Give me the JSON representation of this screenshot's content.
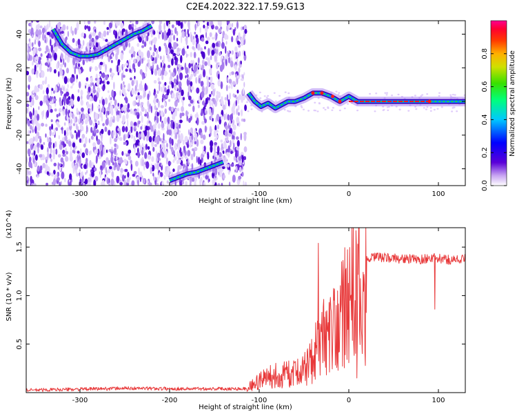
{
  "title": "C2E4.2022.322.17.59.G13",
  "colors": {
    "snr_line": "#e8393a",
    "ridge_dark": "#3a00b8",
    "ridge_green": "#1ddf3c",
    "ridge_red": "#ff1a1a"
  },
  "chart_data": [
    {
      "type": "heatmap",
      "xlabel": "Height of straight line (km)",
      "ylabel": "Frequency (Hz)",
      "xlim": [
        -360,
        130
      ],
      "ylim": [
        -50,
        48
      ],
      "x_ticks": [
        -300,
        -200,
        -100,
        0,
        100
      ],
      "x_tick_labels": [
        "-300",
        "-200",
        "-100",
        "0",
        "100"
      ],
      "y_ticks": [
        -40,
        -20,
        0,
        20,
        40
      ],
      "y_tick_labels": [
        "-40",
        "-20",
        "0",
        "20",
        "40"
      ],
      "colorbar": {
        "label": "Normalized spectral amplitude",
        "range": [
          0,
          1
        ],
        "ticks": [
          0.0,
          0.2,
          0.4,
          0.6,
          0.8
        ],
        "tick_labels": [
          "0.0",
          "0.2",
          "0.4",
          "0.6",
          "0.8"
        ],
        "colormap": "rainbow"
      },
      "ridges": [
        {
          "x": [
            -330,
            -320,
            -310,
            -300,
            -290,
            -280,
            -270,
            -260,
            -250,
            -240,
            -230,
            -220
          ],
          "y": [
            43,
            34,
            29,
            27,
            27,
            28,
            31,
            34,
            37,
            40,
            42,
            45
          ]
        },
        {
          "x": [
            -200,
            -190,
            -180,
            -170,
            -160,
            -150,
            -140
          ],
          "y": [
            -47,
            -45,
            -43,
            -42,
            -40,
            -38,
            -36
          ]
        },
        {
          "x": [
            -112,
            -105,
            -98,
            -90,
            -82,
            -75,
            -68,
            -60,
            -50,
            -40,
            -30,
            -20,
            -10,
            0,
            10,
            50,
            90,
            130
          ],
          "y": [
            5,
            0,
            -3,
            -1,
            -4,
            -2,
            0,
            0,
            2,
            5,
            5,
            3,
            0,
            3,
            0,
            0,
            0,
            0
          ]
        }
      ]
    },
    {
      "type": "line",
      "xlabel": "Height of straight line (km)",
      "ylabel": "SNR (10 * v/v)",
      "y_multiplier": "(x10^4)",
      "xlim": [
        -360,
        130
      ],
      "ylim": [
        0,
        17000
      ],
      "x_ticks": [
        -300,
        -200,
        -100,
        0,
        100
      ],
      "x_tick_labels": [
        "-300",
        "-200",
        "-100",
        "0",
        "100"
      ],
      "y_ticks": [
        5000,
        10000,
        15000
      ],
      "y_tick_labels": [
        "0.5",
        "1.0",
        "1.5"
      ],
      "series": [
        {
          "x": [
            -360,
            -300,
            -250,
            -200,
            -150,
            -115,
            -100,
            -80,
            -60,
            -50,
            -40,
            -30,
            -20,
            -10,
            0,
            10,
            20,
            30,
            40,
            60,
            80,
            90,
            100,
            110,
            120,
            130
          ],
          "y": [
            250,
            350,
            450,
            400,
            400,
            400,
            1500,
            2200,
            2300,
            3000,
            4500,
            6500,
            7500,
            9000,
            11500,
            13000,
            13600,
            14000,
            13900,
            13800,
            13700,
            13900,
            13800,
            13700,
            13700,
            13800
          ],
          "spikes": [
            {
              "x": -34,
              "y": 15400
            },
            {
              "x": -8,
              "y": 13500
            },
            {
              "x": 8,
              "y": 16700
            },
            {
              "x": 9,
              "y": 1500
            },
            {
              "x": 96,
              "y": 15700
            },
            {
              "x": 96,
              "y": 8600
            }
          ]
        }
      ]
    }
  ]
}
